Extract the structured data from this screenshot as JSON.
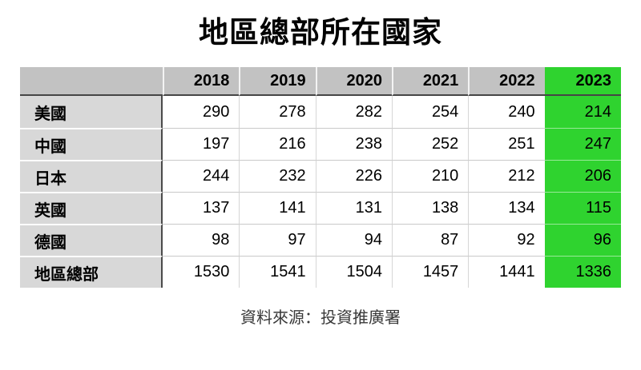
{
  "title": "地區總部所在國家",
  "source_note": "資料來源：投資推廣署",
  "colors": {
    "highlight_green": "#2fd32f",
    "header_gray": "#c2c2c2",
    "label_gray": "#d8d8d8",
    "header_rule_dark": "#454545",
    "grid_light": "#c9c9c9"
  },
  "table": {
    "corner_label": "",
    "years": [
      "2018",
      "2019",
      "2020",
      "2021",
      "2022",
      "2023"
    ],
    "highlighted_year": "2023",
    "rows": [
      {
        "label": "美國",
        "values": [
          "290",
          "278",
          "282",
          "254",
          "240",
          "214"
        ]
      },
      {
        "label": "中國",
        "values": [
          "197",
          "216",
          "238",
          "252",
          "251",
          "247"
        ]
      },
      {
        "label": "日本",
        "values": [
          "244",
          "232",
          "226",
          "210",
          "212",
          "206"
        ]
      },
      {
        "label": "英國",
        "values": [
          "137",
          "141",
          "131",
          "138",
          "134",
          "115"
        ]
      },
      {
        "label": "德國",
        "values": [
          "98",
          "97",
          "94",
          "87",
          "92",
          "96"
        ]
      },
      {
        "label": "地區總部",
        "values": [
          "1530",
          "1541",
          "1504",
          "1457",
          "1441",
          "1336"
        ]
      }
    ]
  },
  "chart_data": {
    "type": "table",
    "title": "地區總部所在國家",
    "categories": [
      "2018",
      "2019",
      "2020",
      "2021",
      "2022",
      "2023"
    ],
    "series": [
      {
        "name": "美國",
        "values": [
          290,
          278,
          282,
          254,
          240,
          214
        ]
      },
      {
        "name": "中國",
        "values": [
          197,
          216,
          238,
          252,
          251,
          247
        ]
      },
      {
        "name": "日本",
        "values": [
          244,
          232,
          226,
          210,
          212,
          206
        ]
      },
      {
        "name": "英國",
        "values": [
          137,
          141,
          131,
          138,
          134,
          115
        ]
      },
      {
        "name": "德國",
        "values": [
          98,
          97,
          94,
          87,
          92,
          96
        ]
      },
      {
        "name": "地區總部",
        "values": [
          1530,
          1541,
          1504,
          1457,
          1441,
          1336
        ]
      }
    ],
    "highlighted_column": "2023",
    "layout": {
      "highlight_color": "#2fd32f",
      "header_background": "#c2c2c2",
      "label_background": "#d8d8d8"
    },
    "source": "資料來源：投資推廣署"
  }
}
